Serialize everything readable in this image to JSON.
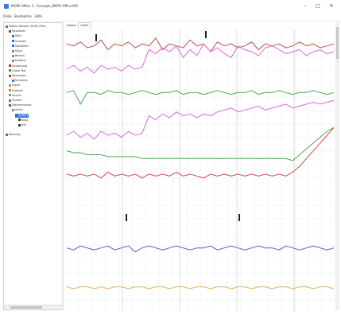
{
  "window": {
    "title": "MOPA Office 2 - Example_MOPA Office MO",
    "minimize": "–",
    "maximize": "□",
    "close": "✕"
  },
  "menu": [
    "Datei",
    "Bearbeiten",
    "Hilfe"
  ],
  "tabs": [
    "Details",
    "Grafik"
  ],
  "active_tab": 1,
  "tree": [
    {
      "label": "Patient: Beispiel, MOPA Office",
      "indent": 0,
      "color": "#2f6fd6",
      "selected": false
    },
    {
      "label": "Messdaten",
      "indent": 1,
      "color": "#b03030",
      "selected": false
    },
    {
      "label": "Aktiv",
      "indent": 2,
      "color": "#2f6fd6",
      "selected": false
    },
    {
      "label": "Synkope",
      "indent": 2,
      "color": "#2f6fd6",
      "selected": false
    },
    {
      "label": "Statistiken",
      "indent": 2,
      "color": "#2f6fd6",
      "selected": false
    },
    {
      "label": "Säule",
      "indent": 2,
      "color": "#888888",
      "selected": false
    },
    {
      "label": "Bereich",
      "indent": 2,
      "color": "#888888",
      "selected": false
    },
    {
      "label": "Kollektiv",
      "indent": 2,
      "color": "#888888",
      "selected": false
    },
    {
      "label": "Auswertung",
      "indent": 1,
      "color": "#b03030",
      "selected": false
    },
    {
      "label": "Quelle Text",
      "indent": 1,
      "color": "#3a8a3a",
      "selected": false
    },
    {
      "label": "Messungen",
      "indent": 1,
      "color": "#b03030",
      "selected": false
    },
    {
      "label": "Kontrollen",
      "indent": 2,
      "color": "#2f6fd6",
      "selected": false
    },
    {
      "label": "Export",
      "indent": 1,
      "color": "#c08a20",
      "selected": false
    },
    {
      "label": "Protokoll",
      "indent": 1,
      "color": "#c08a20",
      "selected": false
    },
    {
      "label": "Ansicht",
      "indent": 1,
      "color": "#888888",
      "selected": false
    },
    {
      "label": "Transfer",
      "indent": 1,
      "color": "#2f6fd6",
      "selected": false
    },
    {
      "label": "Dokumentation",
      "indent": 1,
      "color": "#b03030",
      "selected": false
    },
    {
      "label": "Archiv",
      "indent": 2,
      "color": "#888888",
      "selected": false
    },
    {
      "label": "Grafik 1",
      "indent": 3,
      "color": "#2f6fd6",
      "selected": true
    },
    {
      "label": "Notiz",
      "indent": 4,
      "color": "#333333",
      "selected": false
    },
    {
      "label": "Bild",
      "indent": 4,
      "color": "#333333",
      "selected": false
    },
    {
      "label": "Messung",
      "indent": 0,
      "color": "#2f6fd6",
      "selected": false
    }
  ],
  "chart_data": {
    "type": "line",
    "grid": true,
    "series": [
      {
        "color": "#c0504d",
        "values": [
          5,
          6,
          4,
          7,
          6,
          3,
          8,
          5,
          6,
          4,
          7,
          5,
          6,
          2,
          8,
          5,
          6,
          7,
          3,
          6,
          5,
          9,
          4,
          6,
          5,
          7,
          6,
          4,
          8,
          5,
          6,
          5,
          7,
          6,
          4,
          6,
          5,
          7,
          6,
          5
        ]
      },
      {
        "color": "#e066e0",
        "values": [
          18,
          16,
          19,
          17,
          20,
          16,
          18,
          17,
          19,
          16,
          18,
          17,
          8,
          10,
          7,
          9,
          6,
          12,
          8,
          11,
          5,
          9,
          7,
          10,
          12,
          6,
          8,
          9,
          11,
          7,
          6,
          8,
          10,
          9,
          8,
          11,
          9,
          8,
          10,
          9
        ]
      },
      {
        "color": "#4fa84f",
        "values": [
          30,
          29,
          36,
          30,
          30,
          31,
          29,
          30,
          30,
          31,
          30,
          29,
          30,
          31,
          30,
          30,
          29,
          31,
          30,
          30,
          31,
          30,
          29,
          30,
          31,
          30,
          30,
          29,
          31,
          30,
          30,
          29,
          30,
          31,
          30,
          30,
          29,
          30,
          31,
          30
        ]
      },
      {
        "color": "#e066e0",
        "values": [
          52,
          50,
          53,
          51,
          54,
          50,
          52,
          51,
          53,
          50,
          52,
          51,
          42,
          44,
          41,
          43,
          40,
          42,
          41,
          43,
          41,
          42,
          40,
          39,
          38,
          40,
          39,
          38,
          37,
          39,
          38,
          37,
          36,
          38,
          37,
          36,
          35,
          36,
          35,
          34
        ]
      },
      {
        "color": "#4fa84f",
        "values": [
          60,
          61,
          61,
          62,
          62,
          62,
          63,
          63,
          63,
          63,
          63,
          64,
          64,
          64,
          64,
          64,
          64,
          64,
          64,
          64,
          64,
          64,
          64,
          64,
          64,
          64,
          64,
          64,
          64,
          64,
          64,
          64,
          64,
          65,
          62,
          59,
          56,
          53,
          50,
          48
        ]
      },
      {
        "color": "#d94848",
        "values": [
          72,
          73,
          72,
          73,
          72,
          74,
          71,
          73,
          72,
          73,
          72,
          74,
          72,
          73,
          72,
          73,
          71,
          73,
          72,
          73,
          74,
          72,
          73,
          72,
          73,
          72,
          73,
          72,
          73,
          72,
          73,
          72,
          73,
          71,
          68,
          64,
          60,
          56,
          52,
          48
        ]
      },
      {
        "color": "#5a5ad0",
        "values": [
          110,
          111,
          109,
          110,
          111,
          110,
          109,
          111,
          110,
          109,
          112,
          110,
          109,
          110,
          111,
          110,
          109,
          110,
          111,
          110,
          110,
          109,
          111,
          110,
          109,
          110,
          111,
          110,
          109,
          110,
          110,
          111,
          109,
          110,
          111,
          110,
          109,
          110,
          111,
          110
        ]
      },
      {
        "color": "#f0b060",
        "values": [
          130,
          131,
          130,
          130,
          131,
          130,
          131,
          130,
          130,
          131,
          130,
          130,
          131,
          130,
          130,
          131,
          130,
          130,
          131,
          130,
          130,
          131,
          130,
          130,
          131,
          130,
          130,
          131,
          130,
          130,
          131,
          130,
          130,
          131,
          130,
          130,
          131,
          130,
          130,
          131
        ]
      }
    ]
  }
}
